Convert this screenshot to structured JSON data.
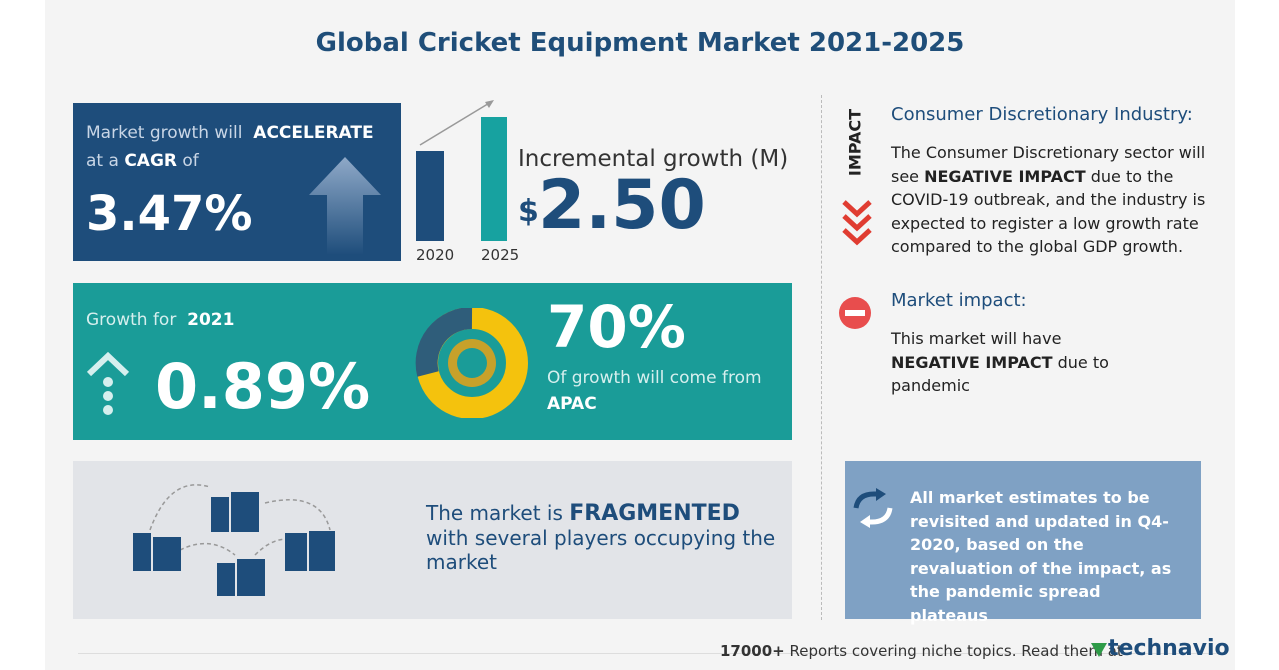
{
  "title": "Global Cricket Equipment Market 2021-2025",
  "cagr": {
    "line1_prefix": "Market growth will",
    "line1_emphasis": "ACCELERATE",
    "line2_prefix": "at a",
    "line2_emphasis": "CAGR",
    "line2_suffix": "of",
    "value": "3.47%"
  },
  "incremental": {
    "bar_labels": [
      "2020",
      "2025"
    ],
    "label": "Incremental growth (M)",
    "currency": "$",
    "value": "2.50"
  },
  "growth_2021": {
    "prefix": "Growth for",
    "year": "2021",
    "value": "0.89%"
  },
  "region": {
    "share": "70%",
    "text": "Of growth will come from",
    "name": "APAC"
  },
  "fragmented": {
    "prefix": "The market is",
    "emphasis": "FRAGMENTED",
    "rest": "with several players occupying the market"
  },
  "impact": {
    "vertical_label": "IMPACT",
    "industry_title": "Consumer Discretionary Industry:",
    "industry_text": [
      "The Consumer Discretionary sector will see ",
      "NEGATIVE IMPACT",
      " due to the COVID-19 outbreak, and the industry is expected to register a low growth rate compared to the global GDP growth."
    ],
    "market_title": "Market impact:",
    "market_text": [
      "This market will have ",
      "NEGATIVE IMPACT",
      " due to pandemic"
    ]
  },
  "note": "All market estimates to be revisited and updated in Q4-2020, based on the revaluation of the impact, as the pandemic spread plateaus",
  "footer": {
    "count": "17000+",
    "text": "Reports covering niche topics. Read them at",
    "brand": "technavio"
  }
}
